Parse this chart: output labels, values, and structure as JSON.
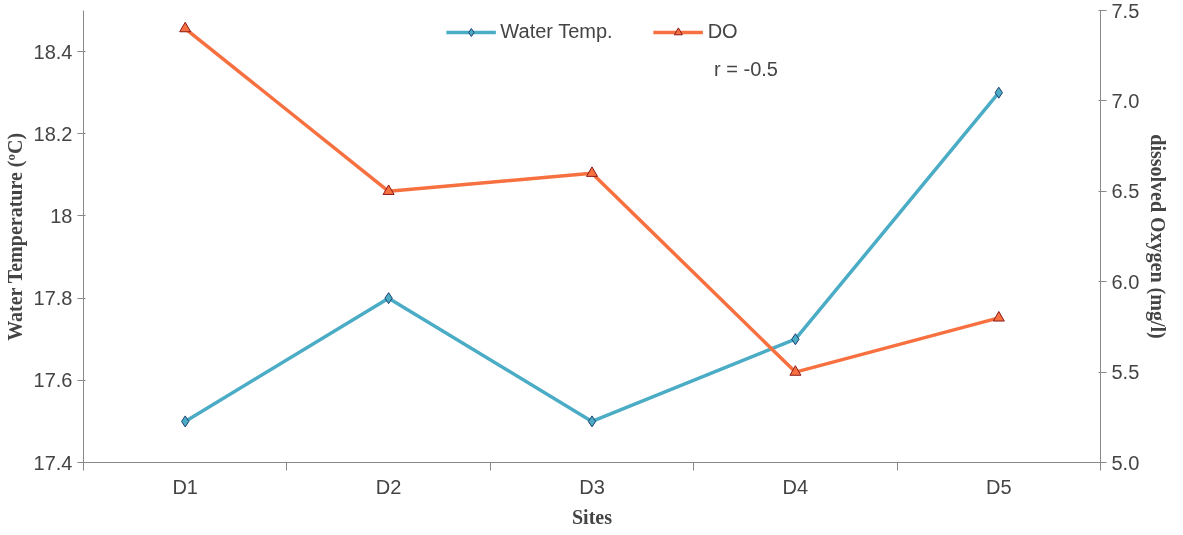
{
  "chart_data": {
    "type": "line",
    "xlabel": "Sites",
    "ylabel": "Water Temperature (ºC)",
    "y2label": "dissolved Oxygen (mg/l)",
    "categories": [
      "D1",
      "D2",
      "D3",
      "D4",
      "D5"
    ],
    "series": [
      {
        "name": "Water Temp.",
        "color": "#4bacc6",
        "marker": "diamond",
        "values": [
          17.5,
          17.8,
          17.5,
          17.7,
          18.3
        ]
      },
      {
        "name": "DO",
        "color": "#f7703f",
        "marker": "triangle",
        "axis": "y2",
        "values": [
          7.4,
          6.5,
          6.6,
          5.5,
          5.8
        ]
      }
    ],
    "ylim": [
      17.4,
      18.5
    ],
    "yticks": [
      17.4,
      17.6,
      17.8,
      18,
      18.2,
      18.4
    ],
    "y2lim": [
      5.0,
      7.5
    ],
    "y2ticks": [
      {
        "value": 5,
        "label": "5.0"
      },
      {
        "value": 5.5,
        "label": "5.5"
      },
      {
        "value": 6,
        "label": "6.0"
      },
      {
        "value": 6.5,
        "label": "6.5"
      },
      {
        "value": 7,
        "label": "7.0"
      },
      {
        "value": 7.5,
        "label": "7.5"
      }
    ],
    "annotations": [
      "r = -0.5"
    ],
    "legend": "top",
    "grid": false
  }
}
